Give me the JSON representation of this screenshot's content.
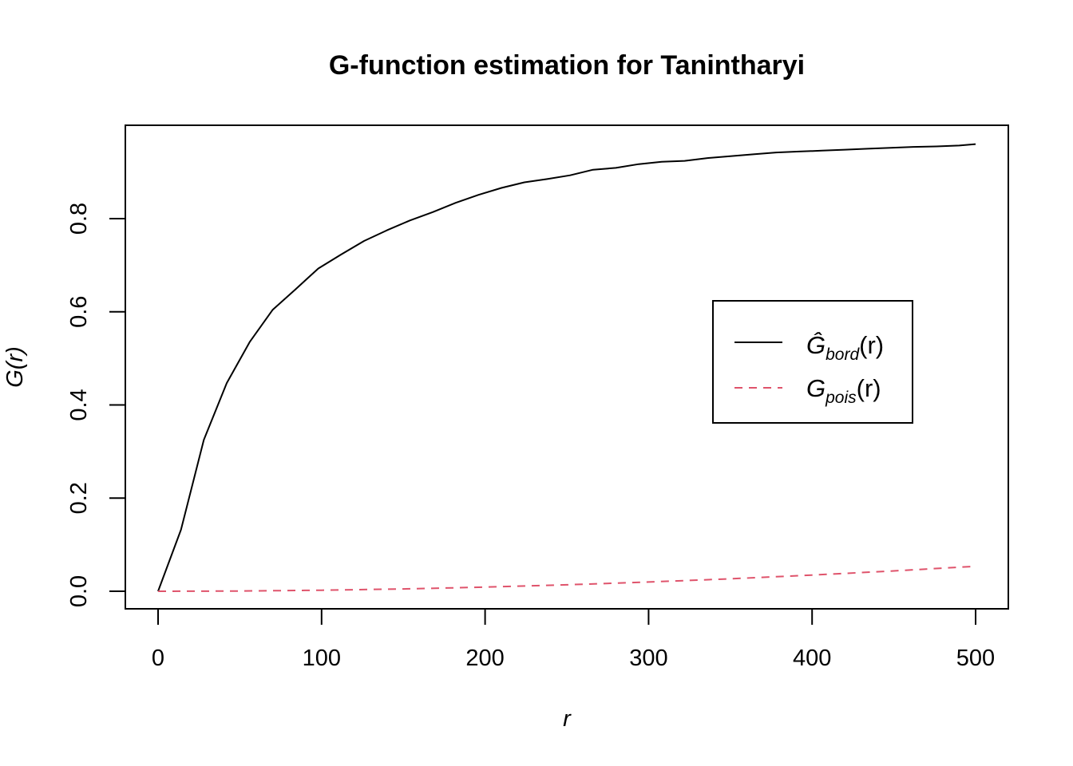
{
  "chart_data": {
    "type": "line",
    "title": "G-function estimation for Tanintharyi",
    "xlabel": "r",
    "ylabel": "G(r)",
    "xlim": [
      0,
      500
    ],
    "ylim": [
      0,
      0.96
    ],
    "x_ticks": [
      0,
      100,
      200,
      300,
      400,
      500
    ],
    "y_ticks": [
      0.0,
      0.2,
      0.4,
      0.6,
      0.8
    ],
    "x_tick_labels": [
      "0",
      "100",
      "200",
      "300",
      "400",
      "500"
    ],
    "y_tick_labels": [
      "0.0",
      "0.2",
      "0.4",
      "0.6",
      "0.8"
    ],
    "legend_position": "right",
    "legend": [
      {
        "main": "Ĝ",
        "sub": "bord",
        "arg": "(r)"
      },
      {
        "main": "G",
        "sub": "pois",
        "arg": "(r)"
      }
    ],
    "series": [
      {
        "color": "#000000",
        "dash": "none",
        "x": [
          0,
          14,
          28,
          42,
          56,
          70,
          84,
          98,
          112,
          126,
          140,
          154,
          168,
          182,
          196,
          210,
          224,
          238,
          252,
          266,
          280,
          294,
          308,
          322,
          336,
          350,
          364,
          378,
          392,
          406,
          420,
          434,
          448,
          462,
          476,
          490,
          500
        ],
        "y": [
          0.0,
          0.132,
          0.325,
          0.447,
          0.535,
          0.604,
          0.648,
          0.693,
          0.723,
          0.752,
          0.775,
          0.796,
          0.814,
          0.834,
          0.851,
          0.866,
          0.878,
          0.885,
          0.893,
          0.905,
          0.909,
          0.917,
          0.922,
          0.924,
          0.93,
          0.934,
          0.938,
          0.942,
          0.944,
          0.946,
          0.948,
          0.95,
          0.952,
          0.954,
          0.955,
          0.957,
          0.96
        ]
      },
      {
        "color": "#DF536B",
        "dash": "10,8",
        "x": [
          0,
          50,
          100,
          150,
          200,
          250,
          300,
          350,
          400,
          450,
          500
        ],
        "y": [
          0.0,
          0.0005,
          0.0022,
          0.005,
          0.0089,
          0.0138,
          0.0198,
          0.0268,
          0.0348,
          0.0437,
          0.0536
        ]
      }
    ]
  }
}
